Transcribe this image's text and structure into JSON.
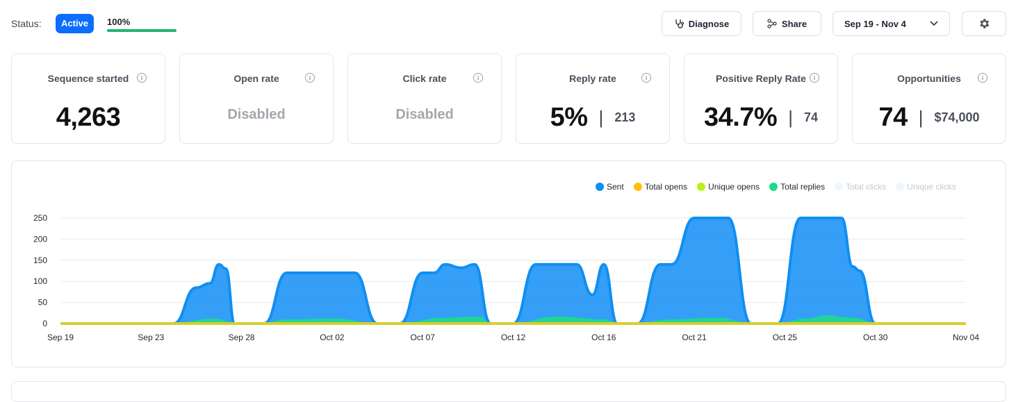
{
  "status": {
    "label": "Status:",
    "badge": "Active",
    "progress_text": "100%",
    "progress": 1.0
  },
  "toolbar": {
    "diagnose": "Diagnose",
    "share": "Share",
    "date_range": "Sep 19 - Nov 4",
    "settings_icon": "gear-icon"
  },
  "cards": [
    {
      "title": "Sequence started",
      "value": "4,263",
      "disabled": false,
      "sub": ""
    },
    {
      "title": "Open rate",
      "value": "Disabled",
      "disabled": true,
      "sub": ""
    },
    {
      "title": "Click rate",
      "value": "Disabled",
      "disabled": true,
      "sub": ""
    },
    {
      "title": "Reply rate",
      "value": "5%",
      "disabled": false,
      "sub": "213"
    },
    {
      "title": "Positive Reply Rate",
      "value": "34.7%",
      "disabled": false,
      "sub": "74"
    },
    {
      "title": "Opportunities",
      "value": "74",
      "disabled": false,
      "sub": "$74,000"
    }
  ],
  "colors": {
    "sent": "#0f8ff2",
    "total_opens": "#ffc107",
    "unique_opens": "#b5f21c",
    "total_replies": "#19dc8a",
    "baseline": "#d8cf2a"
  },
  "chart_data": {
    "type": "area",
    "x_tick_labels": [
      "Sep 19",
      "Sep 23",
      "Sep 28",
      "Oct 02",
      "Oct 07",
      "Oct 12",
      "Oct 16",
      "Oct 21",
      "Oct 25",
      "Oct 30",
      "Nov 04"
    ],
    "y_ticks": [
      0,
      50,
      100,
      150,
      200,
      250
    ],
    "ylim": [
      0,
      260
    ],
    "legend": [
      {
        "name": "Sent",
        "color": "#0f8ff2",
        "enabled": true
      },
      {
        "name": "Total opens",
        "color": "#ffc107",
        "enabled": true
      },
      {
        "name": "Unique opens",
        "color": "#b5f21c",
        "enabled": true
      },
      {
        "name": "Total replies",
        "color": "#19dc8a",
        "enabled": true
      },
      {
        "name": "Total clicks",
        "color": "#e8f3fb",
        "enabled": false
      },
      {
        "name": "Unique clicks",
        "color": "#e8f3fb",
        "enabled": false
      }
    ],
    "grid": true,
    "legend_position": "top-right",
    "series": [
      {
        "name": "Sent",
        "values": [
          [
            0,
            0
          ],
          [
            5,
            0
          ],
          [
            6,
            85
          ],
          [
            6.6,
            95
          ],
          [
            7,
            140
          ],
          [
            7.3,
            130
          ],
          [
            7.7,
            0
          ],
          [
            9,
            0
          ],
          [
            10,
            120
          ],
          [
            13,
            120
          ],
          [
            14,
            0
          ],
          [
            15,
            0
          ],
          [
            16,
            120
          ],
          [
            16.5,
            120
          ],
          [
            17,
            140
          ],
          [
            17.7,
            132
          ],
          [
            18.3,
            140
          ],
          [
            19,
            0
          ],
          [
            20,
            0
          ],
          [
            21,
            140
          ],
          [
            22.8,
            140
          ],
          [
            23.5,
            68
          ],
          [
            24,
            140
          ],
          [
            24.6,
            0
          ],
          [
            25.5,
            0
          ],
          [
            26.5,
            140
          ],
          [
            27,
            140
          ],
          [
            28,
            250
          ],
          [
            29.5,
            250
          ],
          [
            30.5,
            0
          ],
          [
            31.7,
            0
          ],
          [
            32.7,
            250
          ],
          [
            34.5,
            250
          ],
          [
            35,
            135
          ],
          [
            35.3,
            125
          ],
          [
            36,
            0
          ],
          [
            40,
            0
          ]
        ]
      },
      {
        "name": "Total replies",
        "values": [
          [
            0,
            0
          ],
          [
            5,
            0
          ],
          [
            6.8,
            10
          ],
          [
            7.7,
            0
          ],
          [
            9,
            0
          ],
          [
            10,
            8
          ],
          [
            12,
            10
          ],
          [
            14,
            0
          ],
          [
            15,
            0
          ],
          [
            17,
            12
          ],
          [
            18.5,
            15
          ],
          [
            19,
            0
          ],
          [
            20,
            0
          ],
          [
            22,
            15
          ],
          [
            24,
            8
          ],
          [
            24.6,
            0
          ],
          [
            25.5,
            0
          ],
          [
            27,
            8
          ],
          [
            29,
            12
          ],
          [
            30.5,
            0
          ],
          [
            31.7,
            0
          ],
          [
            33,
            10
          ],
          [
            33.8,
            18
          ],
          [
            35,
            12
          ],
          [
            36,
            0
          ],
          [
            40,
            0
          ]
        ]
      }
    ]
  }
}
